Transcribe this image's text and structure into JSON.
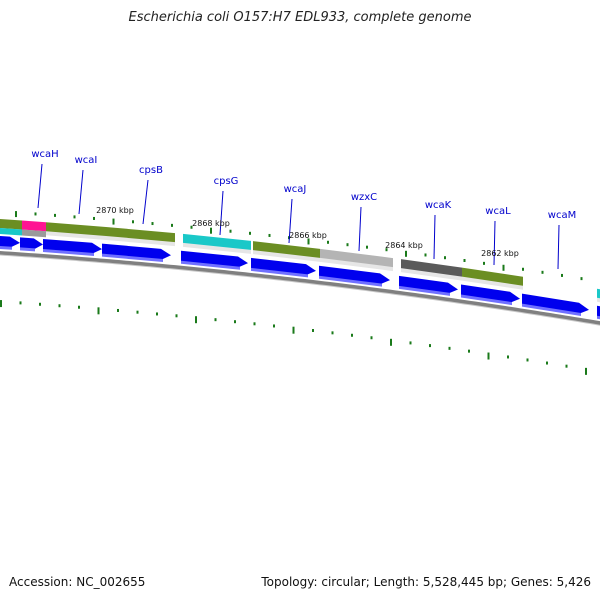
{
  "title": "Escherichia coli O157:H7 EDL933, complete genome",
  "accession": "Accession: NC_002655",
  "topology": "Topology: circular; Length: 5,528,445 bp; Genes: 5,426",
  "colors": {
    "cds": "#0000ee",
    "olive": "#6b8e23",
    "cyan": "#1ac8c8",
    "grey": "#b4b4b4",
    "darkgrey": "#5a5a5a",
    "pink": "#ff1493",
    "backbone": "#808080",
    "label": "#0000cc",
    "tick": "#1a7a1a"
  },
  "gene_labels": [
    {
      "name": "wcaH"
    },
    {
      "name": "wcaI"
    },
    {
      "name": "cpsB"
    },
    {
      "name": "cpsG"
    },
    {
      "name": "wcaJ"
    },
    {
      "name": "wzxC"
    },
    {
      "name": "wcaK"
    },
    {
      "name": "wcaL"
    },
    {
      "name": "wcaM"
    }
  ],
  "position_labels": [
    "2870 kbp",
    "2868 kbp",
    "2866 kbp",
    "2864 kbp",
    "2862 kbp"
  ]
}
